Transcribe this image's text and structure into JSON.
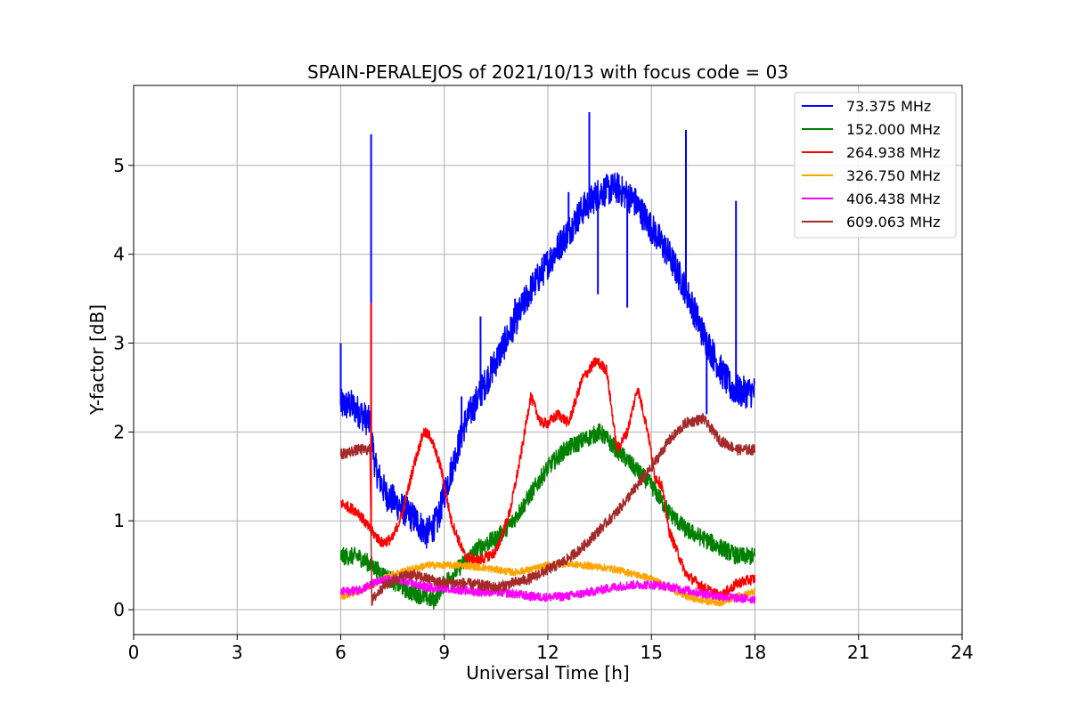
{
  "chart_data": {
    "type": "line",
    "title": "SPAIN-PERALEJOS of 2021/10/13 with focus code = 03",
    "xlabel": "Universal Time [h]",
    "ylabel": "Y-factor [dB]",
    "xlim": [
      0,
      24
    ],
    "ylim": [
      -0.28,
      5.9
    ],
    "xticks": [
      0,
      3,
      6,
      9,
      12,
      15,
      18,
      21,
      24
    ],
    "yticks": [
      0,
      1,
      2,
      3,
      4,
      5
    ],
    "grid": true,
    "legend_position": "top-right",
    "series": [
      {
        "name": " 73.375 MHz",
        "color": "#0000ff",
        "noise": 0.18,
        "x": [
          6.0,
          6.3,
          6.6,
          6.85,
          7.0,
          7.3,
          7.6,
          7.9,
          8.2,
          8.5,
          8.8,
          9.0,
          9.3,
          9.6,
          10.0,
          10.5,
          11.0,
          11.5,
          12.0,
          12.5,
          13.0,
          13.5,
          14.0,
          14.5,
          15.0,
          15.5,
          16.0,
          16.5,
          17.0,
          17.3,
          17.6,
          18.0
        ],
        "y": [
          2.3,
          2.3,
          2.2,
          2.1,
          1.6,
          1.3,
          1.2,
          1.1,
          1.0,
          0.85,
          1.0,
          1.3,
          1.7,
          2.1,
          2.4,
          2.8,
          3.2,
          3.6,
          3.9,
          4.2,
          4.5,
          4.7,
          4.75,
          4.6,
          4.3,
          4.0,
          3.6,
          3.1,
          2.7,
          2.5,
          2.45,
          2.45
        ]
      },
      {
        "name": "152.000 MHz",
        "color": "#008000",
        "noise": 0.1,
        "x": [
          6.0,
          6.5,
          6.9,
          7.2,
          7.6,
          8.0,
          8.4,
          8.7,
          9.0,
          9.5,
          10.0,
          10.5,
          11.0,
          11.5,
          12.0,
          12.5,
          13.0,
          13.5,
          14.0,
          14.5,
          15.0,
          15.5,
          16.0,
          16.5,
          17.0,
          17.5,
          18.0
        ],
        "y": [
          0.6,
          0.6,
          0.5,
          0.4,
          0.3,
          0.2,
          0.15,
          0.1,
          0.3,
          0.5,
          0.7,
          0.8,
          1.0,
          1.3,
          1.6,
          1.8,
          1.9,
          2.0,
          1.8,
          1.6,
          1.4,
          1.1,
          0.9,
          0.8,
          0.7,
          0.6,
          0.6
        ]
      },
      {
        "name": "264.938 MHz",
        "color": "#ff0000",
        "noise": 0.06,
        "x": [
          6.0,
          6.5,
          6.85,
          7.2,
          7.5,
          7.8,
          8.1,
          8.4,
          8.6,
          8.9,
          9.2,
          9.6,
          10.0,
          10.5,
          10.9,
          11.2,
          11.5,
          11.8,
          12.0,
          12.3,
          12.6,
          13.0,
          13.4,
          13.7,
          14.0,
          14.3,
          14.6,
          14.9,
          15.1,
          15.3,
          15.5,
          16.0,
          16.5,
          17.0,
          17.5,
          18.0
        ],
        "y": [
          1.2,
          1.1,
          0.9,
          0.75,
          0.8,
          1.1,
          1.6,
          2.0,
          1.95,
          1.6,
          1.0,
          0.6,
          0.55,
          0.65,
          1.1,
          1.7,
          2.4,
          2.1,
          2.1,
          2.2,
          2.1,
          2.6,
          2.8,
          2.7,
          1.8,
          2.0,
          2.5,
          2.0,
          1.5,
          1.4,
          0.9,
          0.4,
          0.25,
          0.15,
          0.3,
          0.35
        ]
      },
      {
        "name": "326.750 MHz",
        "color": "#ffa500",
        "noise": 0.04,
        "x": [
          6.0,
          6.5,
          7.0,
          7.5,
          8.0,
          8.5,
          9.0,
          9.5,
          10.0,
          10.5,
          11.0,
          11.5,
          12.0,
          12.5,
          13.0,
          13.5,
          14.0,
          14.5,
          15.0,
          15.5,
          16.0,
          16.5,
          17.0,
          17.5,
          18.0
        ],
        "y": [
          0.15,
          0.2,
          0.3,
          0.4,
          0.45,
          0.5,
          0.5,
          0.5,
          0.48,
          0.45,
          0.42,
          0.45,
          0.5,
          0.52,
          0.5,
          0.48,
          0.45,
          0.4,
          0.35,
          0.25,
          0.15,
          0.1,
          0.08,
          0.15,
          0.2
        ]
      },
      {
        "name": "406.438 MHz",
        "color": "#ff00ff",
        "noise": 0.05,
        "x": [
          6.0,
          6.5,
          7.0,
          7.5,
          8.0,
          8.5,
          9.0,
          9.5,
          10.0,
          10.5,
          11.0,
          11.5,
          12.0,
          12.5,
          13.0,
          13.5,
          14.0,
          14.5,
          15.0,
          15.5,
          16.0,
          16.5,
          17.0,
          17.5,
          18.0
        ],
        "y": [
          0.2,
          0.22,
          0.3,
          0.35,
          0.3,
          0.25,
          0.25,
          0.22,
          0.2,
          0.2,
          0.18,
          0.15,
          0.14,
          0.15,
          0.18,
          0.22,
          0.26,
          0.28,
          0.28,
          0.26,
          0.22,
          0.18,
          0.15,
          0.13,
          0.12
        ]
      },
      {
        "name": "609.063 MHz",
        "color": "#a52a2a",
        "noise": 0.06,
        "x": [
          6.0,
          6.5,
          6.85,
          6.9,
          7.2,
          7.6,
          8.0,
          8.5,
          9.0,
          9.5,
          10.0,
          10.5,
          11.0,
          11.5,
          12.0,
          12.5,
          13.0,
          13.5,
          14.0,
          14.5,
          15.0,
          15.5,
          16.0,
          16.5,
          17.0,
          17.5,
          18.0
        ],
        "y": [
          1.75,
          1.8,
          1.8,
          0.1,
          0.25,
          0.35,
          0.4,
          0.35,
          0.3,
          0.3,
          0.28,
          0.25,
          0.3,
          0.35,
          0.45,
          0.55,
          0.7,
          0.9,
          1.1,
          1.35,
          1.6,
          1.9,
          2.1,
          2.15,
          1.9,
          1.8,
          1.8
        ]
      }
    ],
    "spikes": [
      {
        "series": 0,
        "x": 6.88,
        "y": 5.35
      },
      {
        "series": 0,
        "x": 6.0,
        "y": 3.0
      },
      {
        "series": 0,
        "x": 9.5,
        "y": 2.4
      },
      {
        "series": 0,
        "x": 10.05,
        "y": 3.3
      },
      {
        "series": 0,
        "x": 11.05,
        "y": 3.5
      },
      {
        "series": 0,
        "x": 12.6,
        "y": 4.7
      },
      {
        "series": 0,
        "x": 13.2,
        "y": 5.6
      },
      {
        "series": 0,
        "x": 16.0,
        "y": 5.4
      },
      {
        "series": 0,
        "x": 17.45,
        "y": 4.6
      },
      {
        "series": 0,
        "x": 13.45,
        "y": 3.55
      },
      {
        "series": 0,
        "x": 14.3,
        "y": 3.4
      },
      {
        "series": 0,
        "x": 16.6,
        "y": 2.2
      },
      {
        "series": 2,
        "x": 6.88,
        "y": 3.45
      }
    ]
  }
}
